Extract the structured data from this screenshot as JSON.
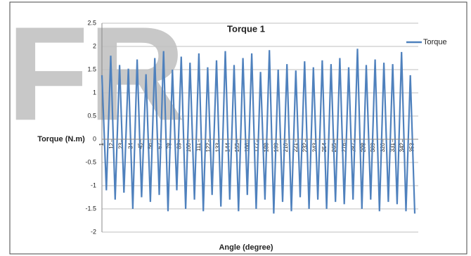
{
  "watermark": "FR",
  "chart_data": {
    "type": "line",
    "title": "Torque 1",
    "x_label": "Angle (degree)",
    "y_label": "Torque (N.m)",
    "x": [
      1,
      6,
      11,
      16,
      21,
      26,
      31,
      36,
      41,
      46,
      51,
      56,
      61,
      66,
      71,
      76,
      81,
      86,
      91,
      96,
      101,
      106,
      111,
      116,
      121,
      126,
      131,
      136,
      141,
      146,
      151,
      156,
      161,
      166,
      171,
      176,
      181,
      186,
      191,
      196,
      201,
      206,
      211,
      216,
      221,
      226,
      231,
      236,
      241,
      246,
      251,
      256,
      261,
      266,
      271,
      276,
      281,
      286,
      291,
      296,
      301,
      306,
      311,
      316,
      321,
      326,
      331,
      336,
      341,
      346,
      351,
      356
    ],
    "series": [
      {
        "name": "Torque",
        "color": "#4f81bd",
        "values": [
          1.38,
          -1.1,
          1.8,
          -1.3,
          1.6,
          -1.15,
          1.52,
          -1.5,
          1.72,
          -1.25,
          1.4,
          -1.35,
          1.75,
          -1.2,
          1.9,
          -1.55,
          1.5,
          -1.1,
          1.78,
          -1.5,
          1.65,
          -1.3,
          1.85,
          -1.55,
          1.55,
          -1.2,
          1.7,
          -1.45,
          1.9,
          -1.3,
          1.6,
          -1.55,
          1.75,
          -1.2,
          1.85,
          -1.5,
          1.45,
          -1.3,
          1.92,
          -1.6,
          1.5,
          -1.35,
          1.62,
          -1.55,
          1.48,
          -1.25,
          1.68,
          -1.5,
          1.55,
          -1.3,
          1.7,
          -1.5,
          1.62,
          -1.35,
          1.75,
          -1.4,
          1.55,
          -1.3,
          1.95,
          -1.5,
          1.6,
          -1.3,
          1.72,
          -1.55,
          1.65,
          -1.35,
          1.62,
          -1.4,
          1.88,
          -1.55,
          1.38,
          -1.6
        ]
      }
    ],
    "xlim": [
      1,
      360
    ],
    "xticks": [
      1,
      12,
      23,
      34,
      45,
      56,
      67,
      78,
      89,
      100,
      111,
      122,
      133,
      144,
      155,
      166,
      177,
      188,
      199,
      210,
      221,
      232,
      243,
      254,
      265,
      276,
      287,
      298,
      309,
      320,
      331,
      342,
      353
    ],
    "ylim": [
      -2,
      2.5
    ],
    "yticks": [
      -2,
      -1.5,
      -1,
      -0.5,
      0,
      0.5,
      1,
      1.5,
      2,
      2.5
    ],
    "grid": true,
    "legend": "top-right"
  }
}
